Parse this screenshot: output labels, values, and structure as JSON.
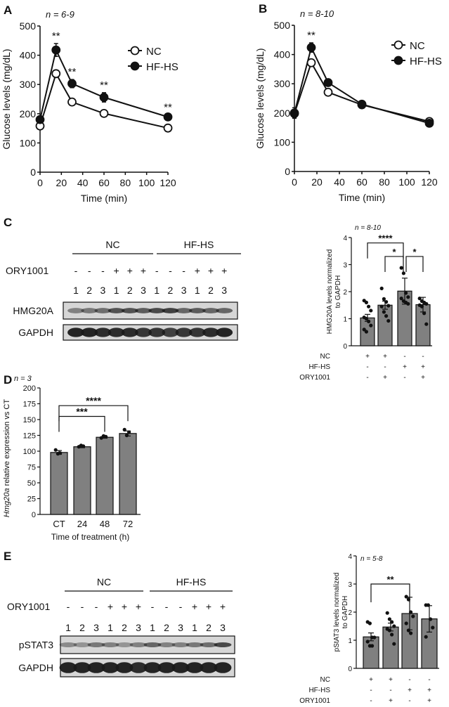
{
  "panel_labels": [
    "A",
    "B",
    "C",
    "D",
    "E"
  ],
  "chart_data": [
    {
      "panel": "A",
      "type": "line",
      "annotation": "n = 6-9",
      "xlabel": "Time (min)",
      "ylabel": "Glucose levels (mg/dL)",
      "xlim": [
        0,
        120
      ],
      "ylim": [
        0,
        500
      ],
      "xticks": [
        0,
        20,
        40,
        60,
        80,
        100,
        120
      ],
      "yticks": [
        0,
        100,
        200,
        300,
        400,
        500
      ],
      "x": [
        0,
        15,
        30,
        60,
        120
      ],
      "legend_position": "top-right",
      "series": [
        {
          "name": "NC",
          "marker": "open-circle",
          "values": [
            158,
            337,
            240,
            201,
            151
          ],
          "errors": [
            6,
            10,
            9,
            6,
            5
          ]
        },
        {
          "name": "HF-HS",
          "marker": "filled-circle",
          "values": [
            180,
            418,
            303,
            256,
            189
          ],
          "errors": [
            8,
            22,
            14,
            16,
            7
          ]
        }
      ],
      "significance": [
        {
          "x": 15,
          "label": "**"
        },
        {
          "x": 30,
          "label": "**"
        },
        {
          "x": 60,
          "label": "**"
        },
        {
          "x": 120,
          "label": "**"
        }
      ]
    },
    {
      "panel": "B",
      "type": "line",
      "annotation": "n = 8-10",
      "xlabel": "Time (min)",
      "ylabel": "Glucose levels (mg/dL)",
      "xlim": [
        0,
        120
      ],
      "ylim": [
        0,
        500
      ],
      "xticks": [
        0,
        20,
        40,
        60,
        80,
        100,
        120
      ],
      "yticks": [
        0,
        100,
        200,
        300,
        400,
        500
      ],
      "x": [
        0,
        15,
        30,
        60,
        120
      ],
      "legend_position": "top-right",
      "series": [
        {
          "name": "NC",
          "marker": "open-circle",
          "values": [
            198,
            372,
            271,
            228,
            171
          ],
          "errors": [
            14,
            12,
            8,
            6,
            5
          ]
        },
        {
          "name": "HF-HS",
          "marker": "filled-circle",
          "values": [
            200,
            424,
            304,
            230,
            165
          ],
          "errors": [
            18,
            16,
            7,
            6,
            5
          ]
        }
      ],
      "significance": [
        {
          "x": 15,
          "label": "**"
        }
      ]
    },
    {
      "panel": "C",
      "type": "bar",
      "annotation": "n = 8-10",
      "ylabel": "HMG20A levels normalized to GAPDH",
      "ylim": [
        0,
        4
      ],
      "yticks": [
        0,
        1,
        2,
        3,
        4
      ],
      "conditions": [
        {
          "label": "NC",
          "values": [
            "+",
            "+",
            "-",
            "-"
          ]
        },
        {
          "label": "HF-HS",
          "values": [
            "-",
            "-",
            "+",
            "+"
          ]
        },
        {
          "label": "ORY1001",
          "values": [
            "-",
            "+",
            "-",
            "+"
          ]
        }
      ],
      "values": [
        1.03,
        1.5,
        2.02,
        1.52
      ],
      "errors": [
        0.13,
        0.15,
        0.48,
        0.27
      ],
      "points": [
        [
          1.67,
          1.6,
          1.45,
          1.3,
          1.05,
          1.0,
          0.9,
          0.75,
          0.6,
          0.52
        ],
        [
          2.12,
          1.73,
          1.62,
          1.48,
          1.45,
          1.25,
          1.1,
          0.92
        ],
        [
          2.88,
          2.68,
          1.95,
          1.8,
          1.75,
          1.65,
          1.6,
          1.55
        ],
        [
          1.75,
          1.65,
          1.6,
          1.55,
          1.5,
          1.45,
          1.2,
          0.8
        ]
      ],
      "significance": [
        {
          "from": 0,
          "to": 2,
          "label": "****"
        },
        {
          "from": 1,
          "to": 2,
          "label": "*"
        },
        {
          "from": 2,
          "to": 3,
          "label": "*"
        }
      ]
    },
    {
      "panel": "D",
      "type": "bar",
      "annotation": "n = 3",
      "xlabel": "Time of treatment (h)",
      "ylabel_italic": "Hmg20a",
      "ylabel": " relative expression vs CT",
      "ylim": [
        0,
        200
      ],
      "yticks": [
        0,
        25,
        50,
        75,
        100,
        125,
        150,
        175,
        200
      ],
      "categories": [
        "CT",
        "24",
        "48",
        "72"
      ],
      "values": [
        98,
        107,
        122,
        128
      ],
      "errors": [
        3,
        1.5,
        1.5,
        4
      ],
      "points": [
        [
          102,
          96,
          97
        ],
        [
          107,
          109,
          108
        ],
        [
          121,
          124,
          123
        ],
        [
          134,
          125,
          130
        ]
      ],
      "significance": [
        {
          "from": 0,
          "to": 2,
          "label": "***"
        },
        {
          "from": 0,
          "to": 3,
          "label": "****"
        }
      ]
    },
    {
      "panel": "E",
      "type": "bar",
      "annotation": "n = 5-8",
      "ylabel": "pStAT3 levels normalized to GAPDH",
      "ylim": [
        0,
        4
      ],
      "yticks": [
        0,
        1,
        2,
        3,
        4
      ],
      "conditions": [
        {
          "label": "NC",
          "values": [
            "+",
            "+",
            "-",
            "-"
          ]
        },
        {
          "label": "HF-HS",
          "values": [
            "-",
            "-",
            "+",
            "+"
          ]
        },
        {
          "label": "ORY1001",
          "values": [
            "-",
            "+",
            "-",
            "+"
          ]
        }
      ],
      "values": [
        1.12,
        1.47,
        1.95,
        1.76
      ],
      "errors": [
        0.14,
        0.14,
        0.58,
        0.47
      ],
      "points": [
        [
          1.65,
          1.6,
          1.1,
          1.1,
          0.95,
          0.8,
          0.8
        ],
        [
          1.97,
          1.75,
          1.65,
          1.5,
          1.4,
          1.35,
          1.2,
          0.87
        ],
        [
          2.55,
          2.45,
          2.0,
          1.85,
          1.6,
          1.35,
          1.25
        ],
        [
          2.25,
          2.25,
          1.75,
          1.45,
          1.12
        ]
      ],
      "significance": [
        {
          "from": 0,
          "to": 2,
          "label": "**"
        }
      ]
    }
  ],
  "blots": [
    {
      "panel": "C",
      "groups": [
        "NC",
        "HF-HS"
      ],
      "treatment_label": "ORY1001",
      "treatment": [
        "-",
        "-",
        "-",
        "+",
        "+",
        "+",
        "-",
        "-",
        "-",
        "+",
        "+",
        "+"
      ],
      "lanes": [
        "1",
        "2",
        "3",
        "1",
        "2",
        "3",
        "1",
        "2",
        "3",
        "1",
        "2",
        "3"
      ],
      "rows": [
        "HMG20A",
        "GAPDH"
      ]
    },
    {
      "panel": "E",
      "groups": [
        "NC",
        "HF-HS"
      ],
      "treatment_label": "ORY1001",
      "treatment": [
        "-",
        "-",
        "-",
        "+",
        "+",
        "+",
        "-",
        "-",
        "-",
        "+",
        "+",
        "+"
      ],
      "lanes": [
        "1",
        "2",
        "3",
        "1",
        "2",
        "3",
        "1",
        "2",
        "3",
        "1",
        "2",
        "3"
      ],
      "rows": [
        "pSTAT3",
        "GAPDH"
      ]
    }
  ],
  "colors": {
    "bar_fill": "#808080",
    "ink": "#111111",
    "blot_bg": "#d6d6d6",
    "band": "#1a1a1a"
  }
}
